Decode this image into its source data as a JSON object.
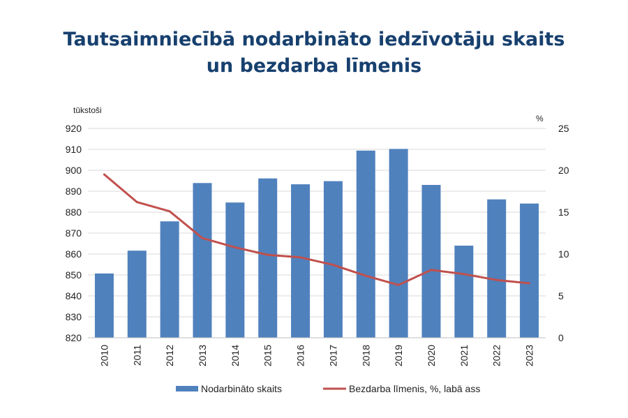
{
  "title_line1": "Tautsaimniecībā nodarbināto iedzīvotāju skaits",
  "title_line2": "un bezdarba līmenis",
  "colors": {
    "bar": "#4f81bd",
    "line": "#c0504d",
    "title": "#17406e",
    "grid": "#d9d9d9"
  },
  "chart_data": {
    "type": "bar+line",
    "categories": [
      "2010",
      "2011",
      "2012",
      "2013",
      "2014",
      "2015",
      "2016",
      "2017",
      "2018",
      "2019",
      "2020",
      "2021",
      "2022",
      "2023"
    ],
    "series": [
      {
        "name": "Nodarbināto skaits",
        "type": "bar",
        "axis": "left",
        "values": [
          850.7,
          861.6,
          875.6,
          893.9,
          884.6,
          896.1,
          893.3,
          894.8,
          909.4,
          910.2,
          893.0,
          864.0,
          886.1,
          884.1
        ]
      },
      {
        "name": "Bezdarba līmenis, %, labā ass",
        "type": "line",
        "axis": "right",
        "values": [
          19.5,
          16.2,
          15.1,
          11.9,
          10.8,
          9.9,
          9.6,
          8.7,
          7.4,
          6.3,
          8.1,
          7.6,
          6.9,
          6.5
        ]
      }
    ],
    "left_axis": {
      "unit": "tūkstoši",
      "min": 820,
      "max": 920,
      "step": 10
    },
    "right_axis": {
      "unit": "%",
      "min": 0,
      "max": 25,
      "step": 5
    },
    "legend_position": "bottom",
    "grid": true
  }
}
